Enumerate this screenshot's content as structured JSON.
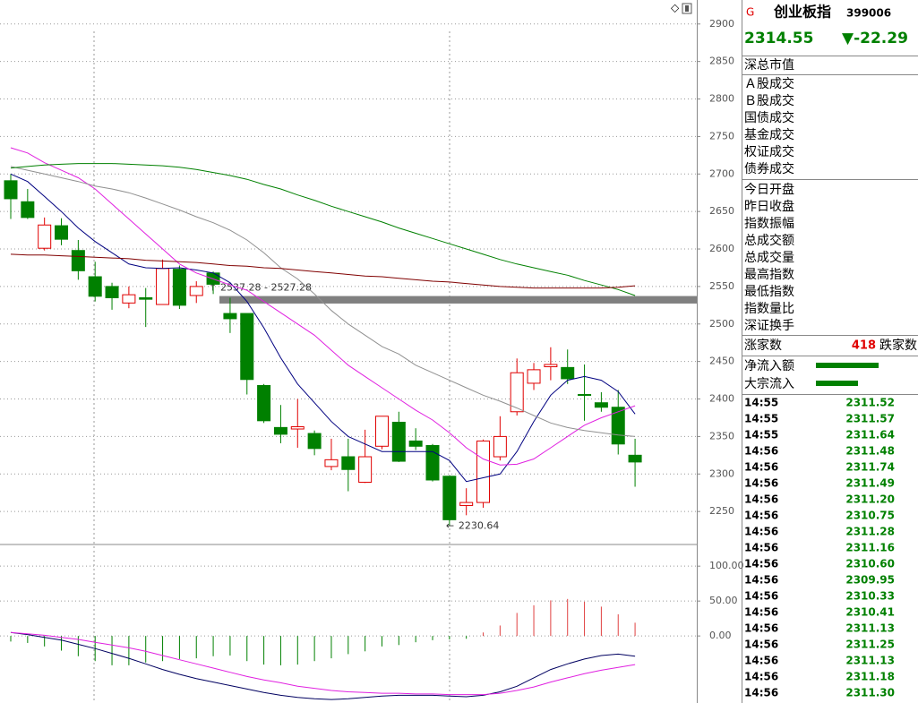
{
  "chart_data": [
    {
      "type": "candlestick",
      "open": [
        2691,
        2663,
        2601,
        2631,
        2598,
        2563,
        2550,
        2528,
        2535,
        2526,
        2573,
        2538,
        2568,
        2514,
        2514,
        2418,
        2362,
        2360,
        2354,
        2310,
        2323,
        2289,
        2337,
        2369,
        2344,
        2338,
        2297,
        2258,
        2262,
        2323,
        2383,
        2421,
        2443,
        2442,
        2406,
        2395,
        2389,
        2325
      ],
      "close": [
        2667,
        2642,
        2632,
        2613,
        2571,
        2537,
        2535,
        2539,
        2533,
        2574,
        2525,
        2550,
        2553,
        2507,
        2426,
        2371,
        2353,
        2363,
        2334,
        2319,
        2306,
        2323,
        2377,
        2317,
        2337,
        2292,
        2239,
        2262,
        2344,
        2350,
        2435,
        2439,
        2446,
        2427,
        2405,
        2389,
        2340,
        2316
      ],
      "high": [
        2700,
        2680,
        2642,
        2641,
        2612,
        2583,
        2555,
        2550,
        2548,
        2586,
        2578,
        2557,
        2570,
        2535,
        2514,
        2420,
        2392,
        2400,
        2358,
        2347,
        2347,
        2359,
        2377,
        2383,
        2361,
        2340,
        2297,
        2281,
        2346,
        2377,
        2454,
        2448,
        2469,
        2466,
        2446,
        2409,
        2412,
        2347
      ],
      "low": [
        2640,
        2640,
        2598,
        2605,
        2559,
        2530,
        2519,
        2521,
        2496,
        2526,
        2520,
        2528,
        2540,
        2488,
        2406,
        2368,
        2341,
        2335,
        2325,
        2305,
        2277,
        2288,
        2333,
        2316,
        2332,
        2290,
        2230.64,
        2245,
        2255,
        2318,
        2378,
        2412,
        2425,
        2420,
        2371,
        2383,
        2326,
        2283
      ],
      "up_color": "#e00000",
      "down_color": "#008000",
      "series": [
        {
          "color": "#000080",
          "values": [
            2700,
            2690,
            2670,
            2650,
            2628,
            2610,
            2595,
            2580,
            2575,
            2574,
            2575,
            2572,
            2568,
            2555,
            2530,
            2495,
            2455,
            2420,
            2395,
            2370,
            2350,
            2340,
            2330,
            2330,
            2330,
            2330,
            2318,
            2290,
            2295,
            2300,
            2330,
            2370,
            2405,
            2425,
            2430,
            2425,
            2410,
            2380
          ]
        },
        {
          "color": "#e020e0",
          "values": [
            2735,
            2728,
            2715,
            2705,
            2695,
            2680,
            2660,
            2640,
            2620,
            2600,
            2580,
            2568,
            2560,
            2552,
            2545,
            2530,
            2515,
            2500,
            2485,
            2465,
            2445,
            2430,
            2415,
            2400,
            2385,
            2372,
            2355,
            2335,
            2320,
            2312,
            2313,
            2320,
            2335,
            2350,
            2365,
            2375,
            2383,
            2391
          ]
        },
        {
          "color": "#909090",
          "values": [
            2710,
            2705,
            2700,
            2695,
            2690,
            2684,
            2680,
            2675,
            2668,
            2660,
            2652,
            2643,
            2635,
            2625,
            2612,
            2595,
            2575,
            2560,
            2540,
            2518,
            2500,
            2485,
            2470,
            2460,
            2445,
            2435,
            2425,
            2415,
            2405,
            2397,
            2388,
            2378,
            2368,
            2362,
            2358,
            2355,
            2352,
            2350
          ]
        },
        {
          "color": "#008000",
          "values": [
            2708,
            2710,
            2712,
            2713,
            2714,
            2714,
            2714,
            2713,
            2712,
            2711,
            2709,
            2706,
            2702,
            2698,
            2693,
            2686,
            2680,
            2672,
            2665,
            2657,
            2650,
            2643,
            2636,
            2628,
            2621,
            2614,
            2607,
            2600,
            2593,
            2586,
            2580,
            2575,
            2570,
            2565,
            2558,
            2552,
            2546,
            2538
          ]
        },
        {
          "color": "#800000",
          "values": [
            2593,
            2592,
            2592,
            2591,
            2590,
            2589,
            2588,
            2587,
            2585,
            2584,
            2583,
            2582,
            2580,
            2578,
            2577,
            2575,
            2574,
            2572,
            2570,
            2568,
            2566,
            2564,
            2563,
            2561,
            2559,
            2557,
            2556,
            2554,
            2552,
            2550,
            2549,
            2548,
            2548,
            2548,
            2548,
            2548,
            2549,
            2551
          ]
        }
      ],
      "band": [
        2527.28,
        2537.28
      ],
      "band_color": "#808080",
      "band_label": "2537.28 - 2527.28",
      "ylim": [
        2206,
        2932
      ],
      "yticks": [
        2250,
        2300,
        2350,
        2400,
        2450,
        2500,
        2550,
        2600,
        2650,
        2700,
        2750,
        2800,
        2850,
        2900
      ],
      "grid": true
    },
    {
      "type": "macd",
      "values": [
        -8,
        -10,
        -15,
        -21,
        -29,
        -36,
        -42,
        -42,
        -38,
        -36,
        -33,
        -32,
        -29,
        -28,
        -36,
        -41,
        -42,
        -41,
        -36,
        -32,
        -26,
        -22,
        -15,
        -13,
        -9,
        -6,
        -5,
        -4,
        5,
        15,
        33,
        44,
        51,
        53,
        49,
        42,
        31,
        19
      ],
      "up_color": "#e04040",
      "down_color": "#008000",
      "series": [
        {
          "color": "#000060",
          "values": [
            5,
            2,
            -2,
            -6,
            -12,
            -18,
            -25,
            -32,
            -40,
            -48,
            -55,
            -61,
            -66,
            -71,
            -76,
            -81,
            -85,
            -88,
            -90,
            -91,
            -90,
            -88,
            -86,
            -85,
            -85,
            -85,
            -86,
            -87,
            -85,
            -80,
            -72,
            -60,
            -48,
            -40,
            -33,
            -28,
            -26,
            -29
          ]
        },
        {
          "color": "#e020e0",
          "values": [
            5,
            3,
            1,
            -2,
            -5,
            -9,
            -13,
            -17,
            -22,
            -28,
            -34,
            -40,
            -46,
            -52,
            -58,
            -63,
            -67,
            -72,
            -75,
            -78,
            -80,
            -81,
            -82,
            -82,
            -83,
            -83,
            -84,
            -84,
            -84,
            -82,
            -78,
            -73,
            -66,
            -60,
            -54,
            -49,
            -45,
            -41
          ]
        }
      ],
      "ylim": [
        -96,
        131
      ],
      "yticks": [
        {
          "value": 0,
          "label": "0.00"
        },
        {
          "value": 50,
          "label": "50.00"
        },
        {
          "value": 100,
          "label": "100.00"
        }
      ],
      "grid": true
    }
  ],
  "quote": {
    "market": "G",
    "name": "创业板指",
    "code": "399006",
    "price": "2314.55",
    "change": "▼-22.29",
    "group1": [
      "深总市值"
    ],
    "group2": [
      "Ａ股成交",
      "Ｂ股成交",
      "国债成交",
      "基金成交",
      "权证成交",
      "债券成交"
    ],
    "group3": [
      "今日开盘",
      "昨日收盘",
      "指数振幅",
      "总成交额",
      "总成交量",
      "最高指数",
      "最低指数",
      "指数量比",
      "深证换手"
    ],
    "up_label": "涨家数",
    "up_count": "418",
    "down_label": "跌家数",
    "flow": [
      "净流入额",
      "大宗流入"
    ],
    "ticks": [
      [
        "14:55",
        "2311.52"
      ],
      [
        "14:55",
        "2311.57"
      ],
      [
        "14:55",
        "2311.64"
      ],
      [
        "14:56",
        "2311.48"
      ],
      [
        "14:56",
        "2311.74"
      ],
      [
        "14:56",
        "2311.49"
      ],
      [
        "14:56",
        "2311.20"
      ],
      [
        "14:56",
        "2310.75"
      ],
      [
        "14:56",
        "2311.28"
      ],
      [
        "14:56",
        "2311.16"
      ],
      [
        "14:56",
        "2310.60"
      ],
      [
        "14:56",
        "2309.95"
      ],
      [
        "14:56",
        "2310.33"
      ],
      [
        "14:56",
        "2310.41"
      ],
      [
        "14:56",
        "2311.13"
      ],
      [
        "14:56",
        "2311.25"
      ],
      [
        "14:56",
        "2311.13"
      ],
      [
        "14:56",
        "2311.18"
      ],
      [
        "14:56",
        "2311.30"
      ]
    ]
  }
}
